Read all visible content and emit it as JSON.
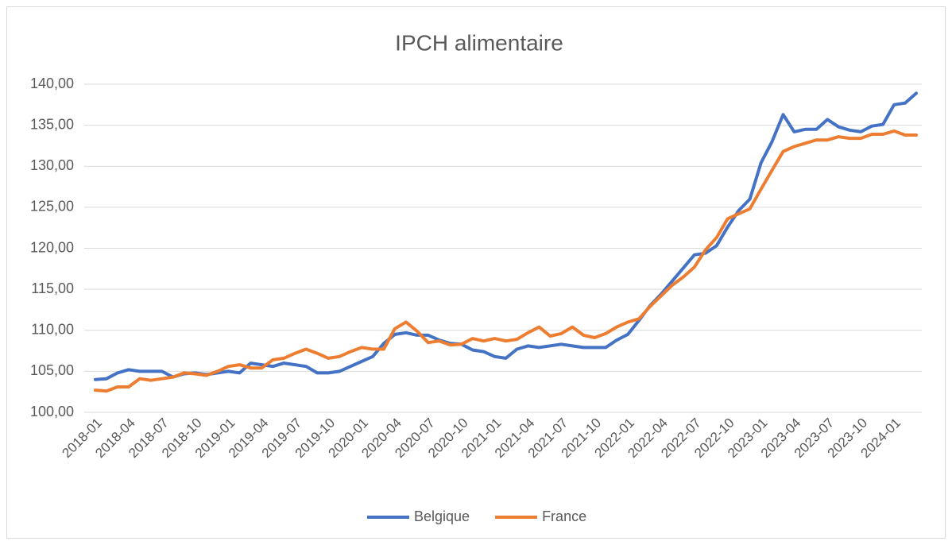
{
  "chart_data": {
    "type": "line",
    "title": "IPCH alimentaire",
    "categories": [
      "2018-01",
      null,
      null,
      "2018-04",
      null,
      null,
      "2018-07",
      null,
      null,
      "2018-10",
      null,
      null,
      "2019-01",
      null,
      null,
      "2019-04",
      null,
      null,
      "2019-07",
      null,
      null,
      "2019-10",
      null,
      null,
      "2020-01",
      null,
      null,
      "2020-04",
      null,
      null,
      "2020-07",
      null,
      null,
      "2020-10",
      null,
      null,
      "2021-01",
      null,
      null,
      "2021-04",
      null,
      null,
      "2021-07",
      null,
      null,
      "2021-10",
      null,
      null,
      "2022-01",
      null,
      null,
      "2022-04",
      null,
      null,
      "2022-07",
      null,
      null,
      "2022-10",
      null,
      null,
      "2023-01",
      null,
      null,
      "2023-04",
      null,
      null,
      "2023-07",
      null,
      null,
      "2023-10",
      null,
      null,
      "2024-01",
      null,
      null
    ],
    "series": [
      {
        "name": "Belgique",
        "color": "#4472c4",
        "values": [
          104.0,
          104.1,
          104.8,
          105.2,
          105.0,
          105.0,
          105.0,
          104.3,
          104.7,
          104.8,
          104.6,
          104.8,
          105.0,
          104.8,
          106.0,
          105.8,
          105.6,
          106.0,
          105.8,
          105.6,
          104.8,
          104.8,
          105.0,
          105.6,
          106.2,
          106.8,
          108.4,
          109.5,
          109.7,
          109.4,
          109.4,
          108.8,
          108.4,
          108.3,
          107.6,
          107.4,
          106.8,
          106.6,
          107.7,
          108.1,
          107.9,
          108.1,
          108.3,
          108.1,
          107.9,
          107.9,
          107.9,
          108.8,
          109.5,
          111.2,
          113.0,
          114.4,
          116.0,
          117.6,
          119.2,
          119.4,
          120.3,
          122.6,
          124.6,
          126.0,
          130.4,
          133.0,
          136.3,
          134.2,
          134.5,
          134.5,
          135.7,
          134.8,
          134.4,
          134.2,
          134.9,
          135.1,
          137.5,
          137.7,
          138.9
        ]
      },
      {
        "name": "France",
        "color": "#ed7d31",
        "values": [
          102.7,
          102.6,
          103.1,
          103.1,
          104.1,
          103.9,
          104.1,
          104.3,
          104.8,
          104.7,
          104.5,
          105.0,
          105.6,
          105.8,
          105.4,
          105.4,
          106.4,
          106.6,
          107.2,
          107.7,
          107.2,
          106.6,
          106.8,
          107.4,
          107.9,
          107.7,
          107.7,
          110.2,
          111.0,
          109.9,
          108.5,
          108.7,
          108.2,
          108.3,
          109.0,
          108.7,
          109.0,
          108.7,
          108.9,
          109.7,
          110.4,
          109.3,
          109.6,
          110.4,
          109.4,
          109.1,
          109.6,
          110.4,
          111.0,
          111.4,
          112.9,
          114.2,
          115.5,
          116.5,
          117.7,
          119.8,
          121.3,
          123.6,
          124.2,
          124.8,
          127.2,
          129.5,
          131.8,
          132.4,
          132.8,
          133.2,
          133.2,
          133.6,
          133.4,
          133.4,
          133.9,
          133.9,
          134.3,
          133.8,
          133.8
        ]
      }
    ],
    "ylim": [
      100,
      140
    ],
    "yticks": [
      {
        "value": 100,
        "label": "100,00"
      },
      {
        "value": 105,
        "label": "105,00"
      },
      {
        "value": 110,
        "label": "110,00"
      },
      {
        "value": 115,
        "label": "115,00"
      },
      {
        "value": 120,
        "label": "120,00"
      },
      {
        "value": 125,
        "label": "125,00"
      },
      {
        "value": 130,
        "label": "130,00"
      },
      {
        "value": 135,
        "label": "135,00"
      },
      {
        "value": 140,
        "label": "140,00"
      }
    ],
    "grid": true,
    "legend": "bottom"
  }
}
